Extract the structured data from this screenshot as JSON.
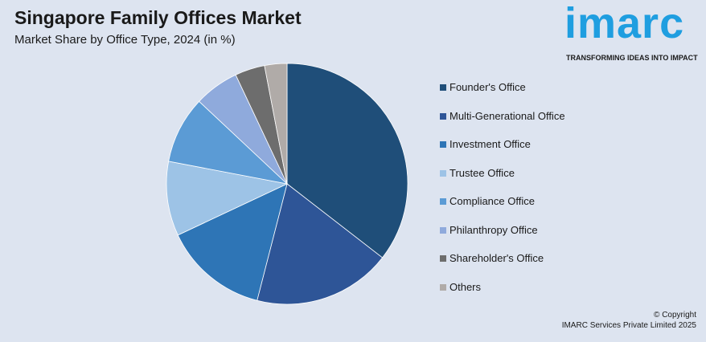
{
  "header": {
    "title": "Singapore Family Offices Market",
    "subtitle": "Market Share by Office Type, 2024 (in %)"
  },
  "logo": {
    "word": "imarc",
    "tagline": "TRANSFORMING IDEAS INTO IMPACT"
  },
  "footer": {
    "copyright_line1": "© Copyright",
    "copyright_line2": "IMARC Services Private Limited 2025"
  },
  "chart_data": {
    "type": "pie",
    "categories": [
      "Founder's Office",
      "Multi-Generational Office",
      "Investment Office",
      "Trustee Office",
      "Compliance Office",
      "Philanthropy Office",
      "Shareholder's Office",
      "Others"
    ],
    "values": [
      35.5,
      18.5,
      14,
      10,
      9,
      6,
      4,
      3
    ],
    "colors": [
      "#1f4e79",
      "#2e5597",
      "#2e75b6",
      "#9dc3e6",
      "#5b9bd5",
      "#8faadc",
      "#6d6d6d",
      "#b0aba8"
    ],
    "legend_position": "right",
    "start_angle": "top, clockwise"
  }
}
